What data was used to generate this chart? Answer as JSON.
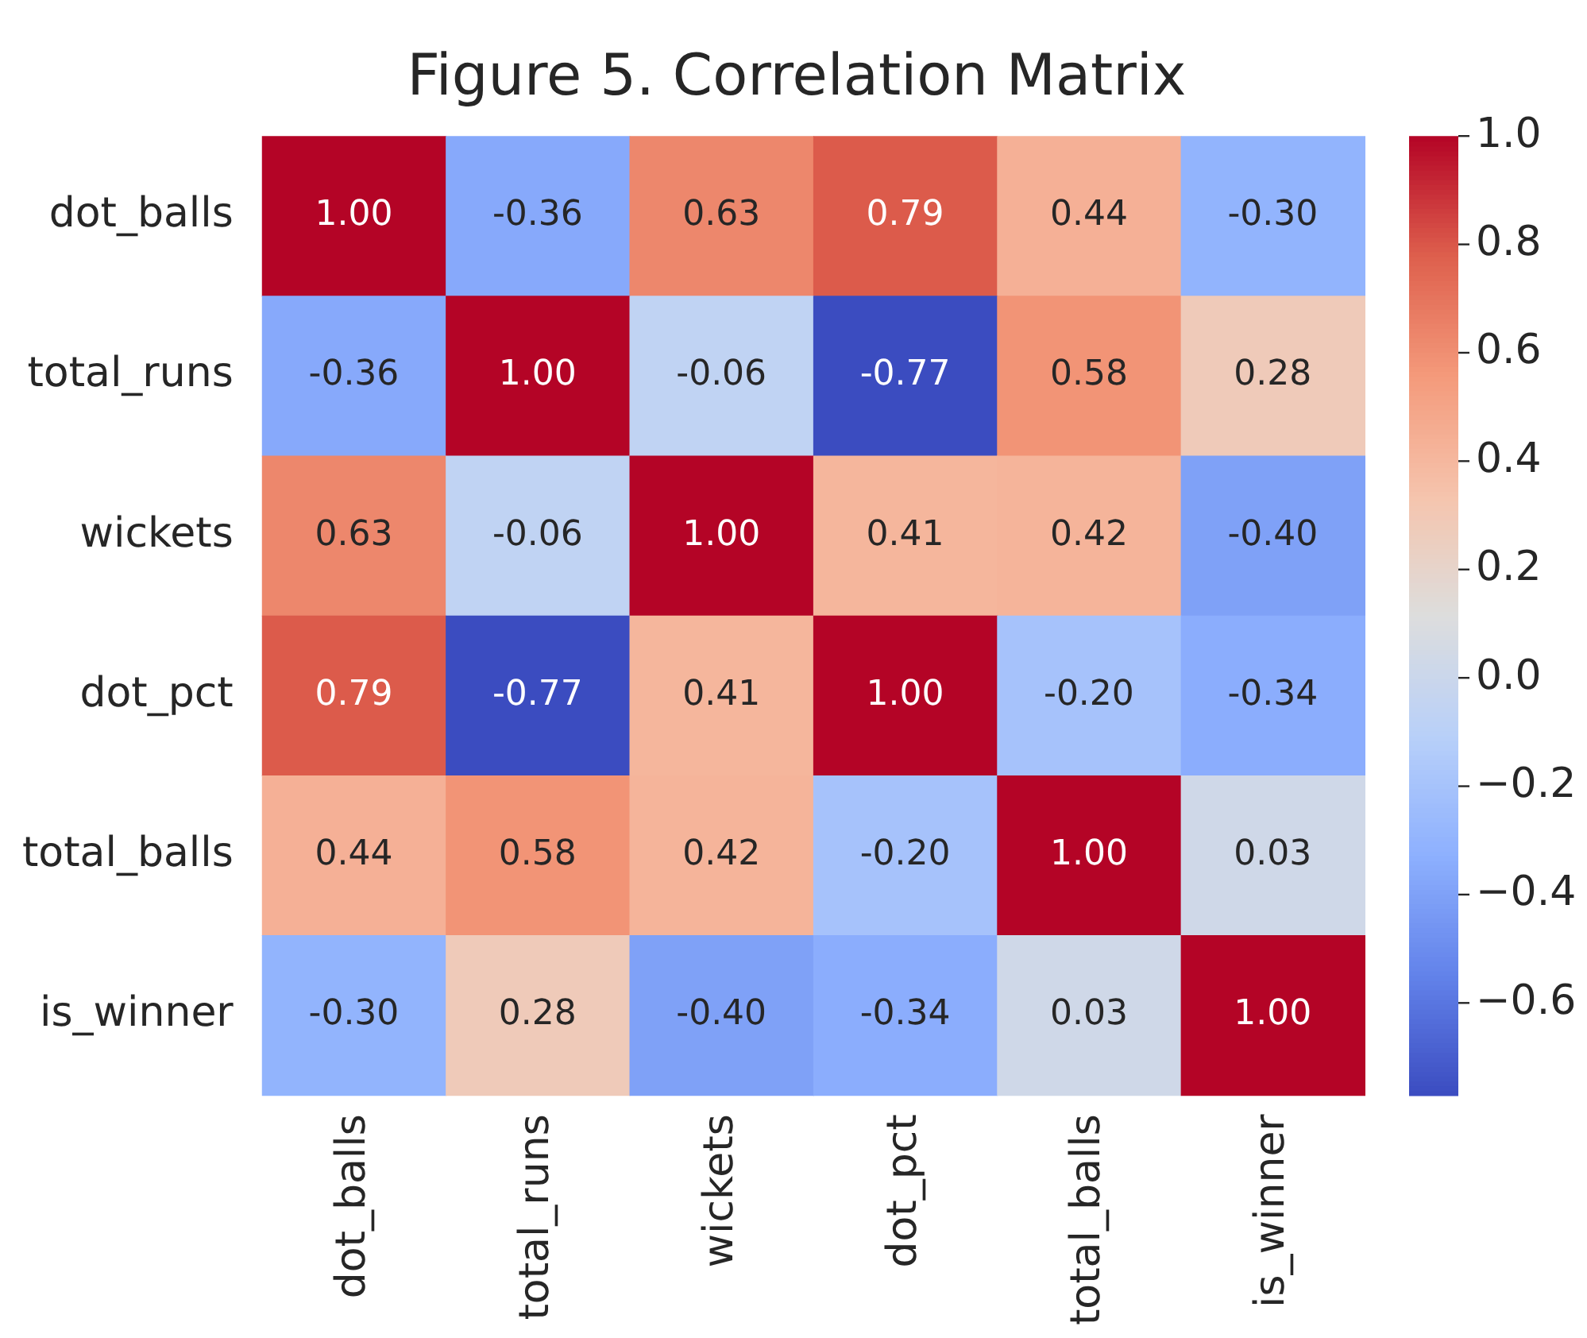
{
  "chart_data": {
    "type": "heatmap",
    "title": "Figure 5. Correlation Matrix",
    "categories": [
      "dot_balls",
      "total_runs",
      "wickets",
      "dot_pct",
      "total_balls",
      "is_winner"
    ],
    "y_categories": [
      "dot_balls",
      "total_runs",
      "wickets",
      "dot_pct",
      "total_balls",
      "is_winner"
    ],
    "cells": [
      [
        1.0,
        -0.36,
        0.63,
        0.79,
        0.44,
        -0.3
      ],
      [
        -0.36,
        1.0,
        -0.06,
        -0.77,
        0.58,
        0.28
      ],
      [
        0.63,
        -0.06,
        1.0,
        0.41,
        0.42,
        -0.4
      ],
      [
        0.79,
        -0.77,
        0.41,
        1.0,
        -0.2,
        -0.34
      ],
      [
        0.44,
        0.58,
        0.42,
        -0.2,
        1.0,
        0.03
      ],
      [
        -0.3,
        0.28,
        -0.4,
        -0.34,
        0.03,
        1.0
      ]
    ],
    "cell_labels": [
      [
        "1.00",
        "-0.36",
        "0.63",
        "0.79",
        "0.44",
        "-0.30"
      ],
      [
        "-0.36",
        "1.00",
        "-0.06",
        "-0.77",
        "0.58",
        "0.28"
      ],
      [
        "0.63",
        "-0.06",
        "1.00",
        "0.41",
        "0.42",
        "-0.40"
      ],
      [
        "0.79",
        "-0.77",
        "0.41",
        "1.00",
        "-0.20",
        "-0.34"
      ],
      [
        "0.44",
        "0.58",
        "0.42",
        "-0.20",
        "1.00",
        "0.03"
      ],
      [
        "-0.30",
        "0.28",
        "-0.40",
        "-0.34",
        "0.03",
        "1.00"
      ]
    ],
    "clim": [
      -0.77,
      1.0
    ],
    "cticks": [
      {
        "value": -0.6,
        "label": "−0.6"
      },
      {
        "value": -0.4,
        "label": "−0.4"
      },
      {
        "value": -0.2,
        "label": "−0.2"
      },
      {
        "value": 0.0,
        "label": "0.0"
      },
      0.2,
      0.4,
      0.6,
      0.8,
      {
        "value": 1.0,
        "label": "1.0"
      }
    ]
  }
}
